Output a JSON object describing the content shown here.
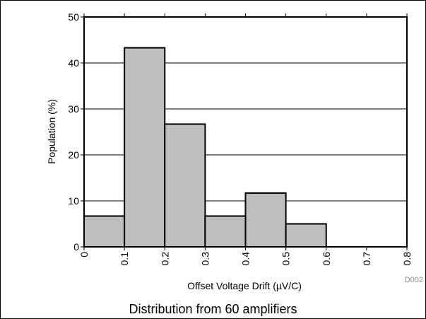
{
  "figure_code": "D002",
  "caption": "Distribution from 60 amplifiers",
  "colors": {
    "bar_fill": "#bebebe",
    "bar_stroke": "#000000",
    "grid": "#000000",
    "code_label": "#8c8c8c"
  },
  "chart_data": {
    "type": "bar",
    "title": "",
    "xlabel": "Offset Voltage Drift (µV/C)",
    "ylabel": "Population (%)",
    "xlim": [
      0,
      0.8
    ],
    "ylim": [
      0,
      50
    ],
    "xticks": [
      "0",
      "0.1",
      "0.2",
      "0.3",
      "0.4",
      "0.5",
      "0.6",
      "0.7",
      "0.8"
    ],
    "yticks": [
      "0",
      "10",
      "20",
      "30",
      "40",
      "50"
    ],
    "grid": "horizontal",
    "bins": [
      {
        "start": 0.0,
        "end": 0.1,
        "value": 6.7
      },
      {
        "start": 0.1,
        "end": 0.2,
        "value": 43.3
      },
      {
        "start": 0.2,
        "end": 0.3,
        "value": 26.7
      },
      {
        "start": 0.3,
        "end": 0.4,
        "value": 6.7
      },
      {
        "start": 0.4,
        "end": 0.5,
        "value": 11.7
      },
      {
        "start": 0.5,
        "end": 0.6,
        "value": 5.0
      },
      {
        "start": 0.6,
        "end": 0.7,
        "value": 0
      },
      {
        "start": 0.7,
        "end": 0.8,
        "value": 0
      }
    ]
  }
}
